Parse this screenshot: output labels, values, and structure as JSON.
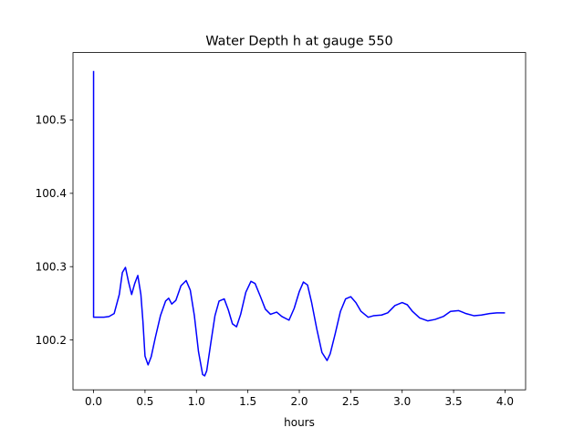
{
  "chart_data": {
    "type": "line",
    "title": "Water Depth h at gauge 550",
    "xlabel": "hours",
    "ylabel": "",
    "xlim": [
      -0.2,
      4.2
    ],
    "ylim": [
      100.132,
      100.592
    ],
    "xticks": [
      0.0,
      0.5,
      1.0,
      1.5,
      2.0,
      2.5,
      3.0,
      3.5,
      4.0
    ],
    "xtick_labels": [
      "0.0",
      "0.5",
      "1.0",
      "1.5",
      "2.0",
      "2.5",
      "3.0",
      "3.5",
      "4.0"
    ],
    "yticks": [
      100.2,
      100.3,
      100.4,
      100.5
    ],
    "ytick_labels": [
      "100.2",
      "100.3",
      "100.4",
      "100.5"
    ],
    "grid": false,
    "line_color": "#0000ff",
    "series": [
      {
        "x": [
          0.0,
          0.0,
          0.001,
          0.05,
          0.1,
          0.15,
          0.2,
          0.25,
          0.28,
          0.31,
          0.34,
          0.37,
          0.4,
          0.43,
          0.46,
          0.48,
          0.5,
          0.53,
          0.56,
          0.6,
          0.65,
          0.7,
          0.73,
          0.76,
          0.8,
          0.85,
          0.9,
          0.94,
          0.98,
          1.02,
          1.06,
          1.08,
          1.1,
          1.14,
          1.18,
          1.22,
          1.27,
          1.31,
          1.35,
          1.39,
          1.43,
          1.48,
          1.53,
          1.57,
          1.62,
          1.67,
          1.72,
          1.78,
          1.83,
          1.9,
          1.95,
          2.0,
          2.04,
          2.08,
          2.12,
          2.17,
          2.22,
          2.27,
          2.3,
          2.35,
          2.4,
          2.45,
          2.5,
          2.55,
          2.6,
          2.67,
          2.72,
          2.8,
          2.86,
          2.93,
          3.0,
          3.05,
          3.1,
          3.17,
          3.25,
          3.32,
          3.4,
          3.47,
          3.55,
          3.62,
          3.7,
          3.77,
          3.85,
          3.92,
          4.0
        ],
        "y": [
          100.567,
          100.231,
          100.231,
          100.231,
          100.231,
          100.232,
          100.236,
          100.262,
          100.292,
          100.299,
          100.279,
          100.262,
          100.277,
          100.288,
          100.262,
          100.225,
          100.178,
          100.166,
          100.177,
          100.203,
          100.233,
          100.253,
          100.257,
          100.249,
          100.254,
          100.274,
          100.281,
          100.268,
          100.233,
          100.184,
          100.153,
          100.151,
          100.158,
          100.196,
          100.233,
          100.253,
          100.256,
          100.241,
          100.222,
          100.218,
          100.235,
          100.265,
          100.28,
          100.277,
          100.26,
          100.242,
          100.235,
          100.238,
          100.232,
          100.227,
          100.243,
          100.266,
          100.279,
          100.275,
          100.251,
          100.215,
          100.183,
          100.172,
          100.181,
          100.209,
          100.239,
          100.256,
          100.259,
          100.251,
          100.239,
          100.231,
          100.233,
          100.234,
          100.237,
          100.247,
          100.251,
          100.248,
          100.239,
          100.23,
          100.226,
          100.228,
          100.232,
          100.239,
          100.24,
          100.236,
          100.233,
          100.234,
          100.236,
          100.237,
          100.237
        ]
      }
    ]
  }
}
